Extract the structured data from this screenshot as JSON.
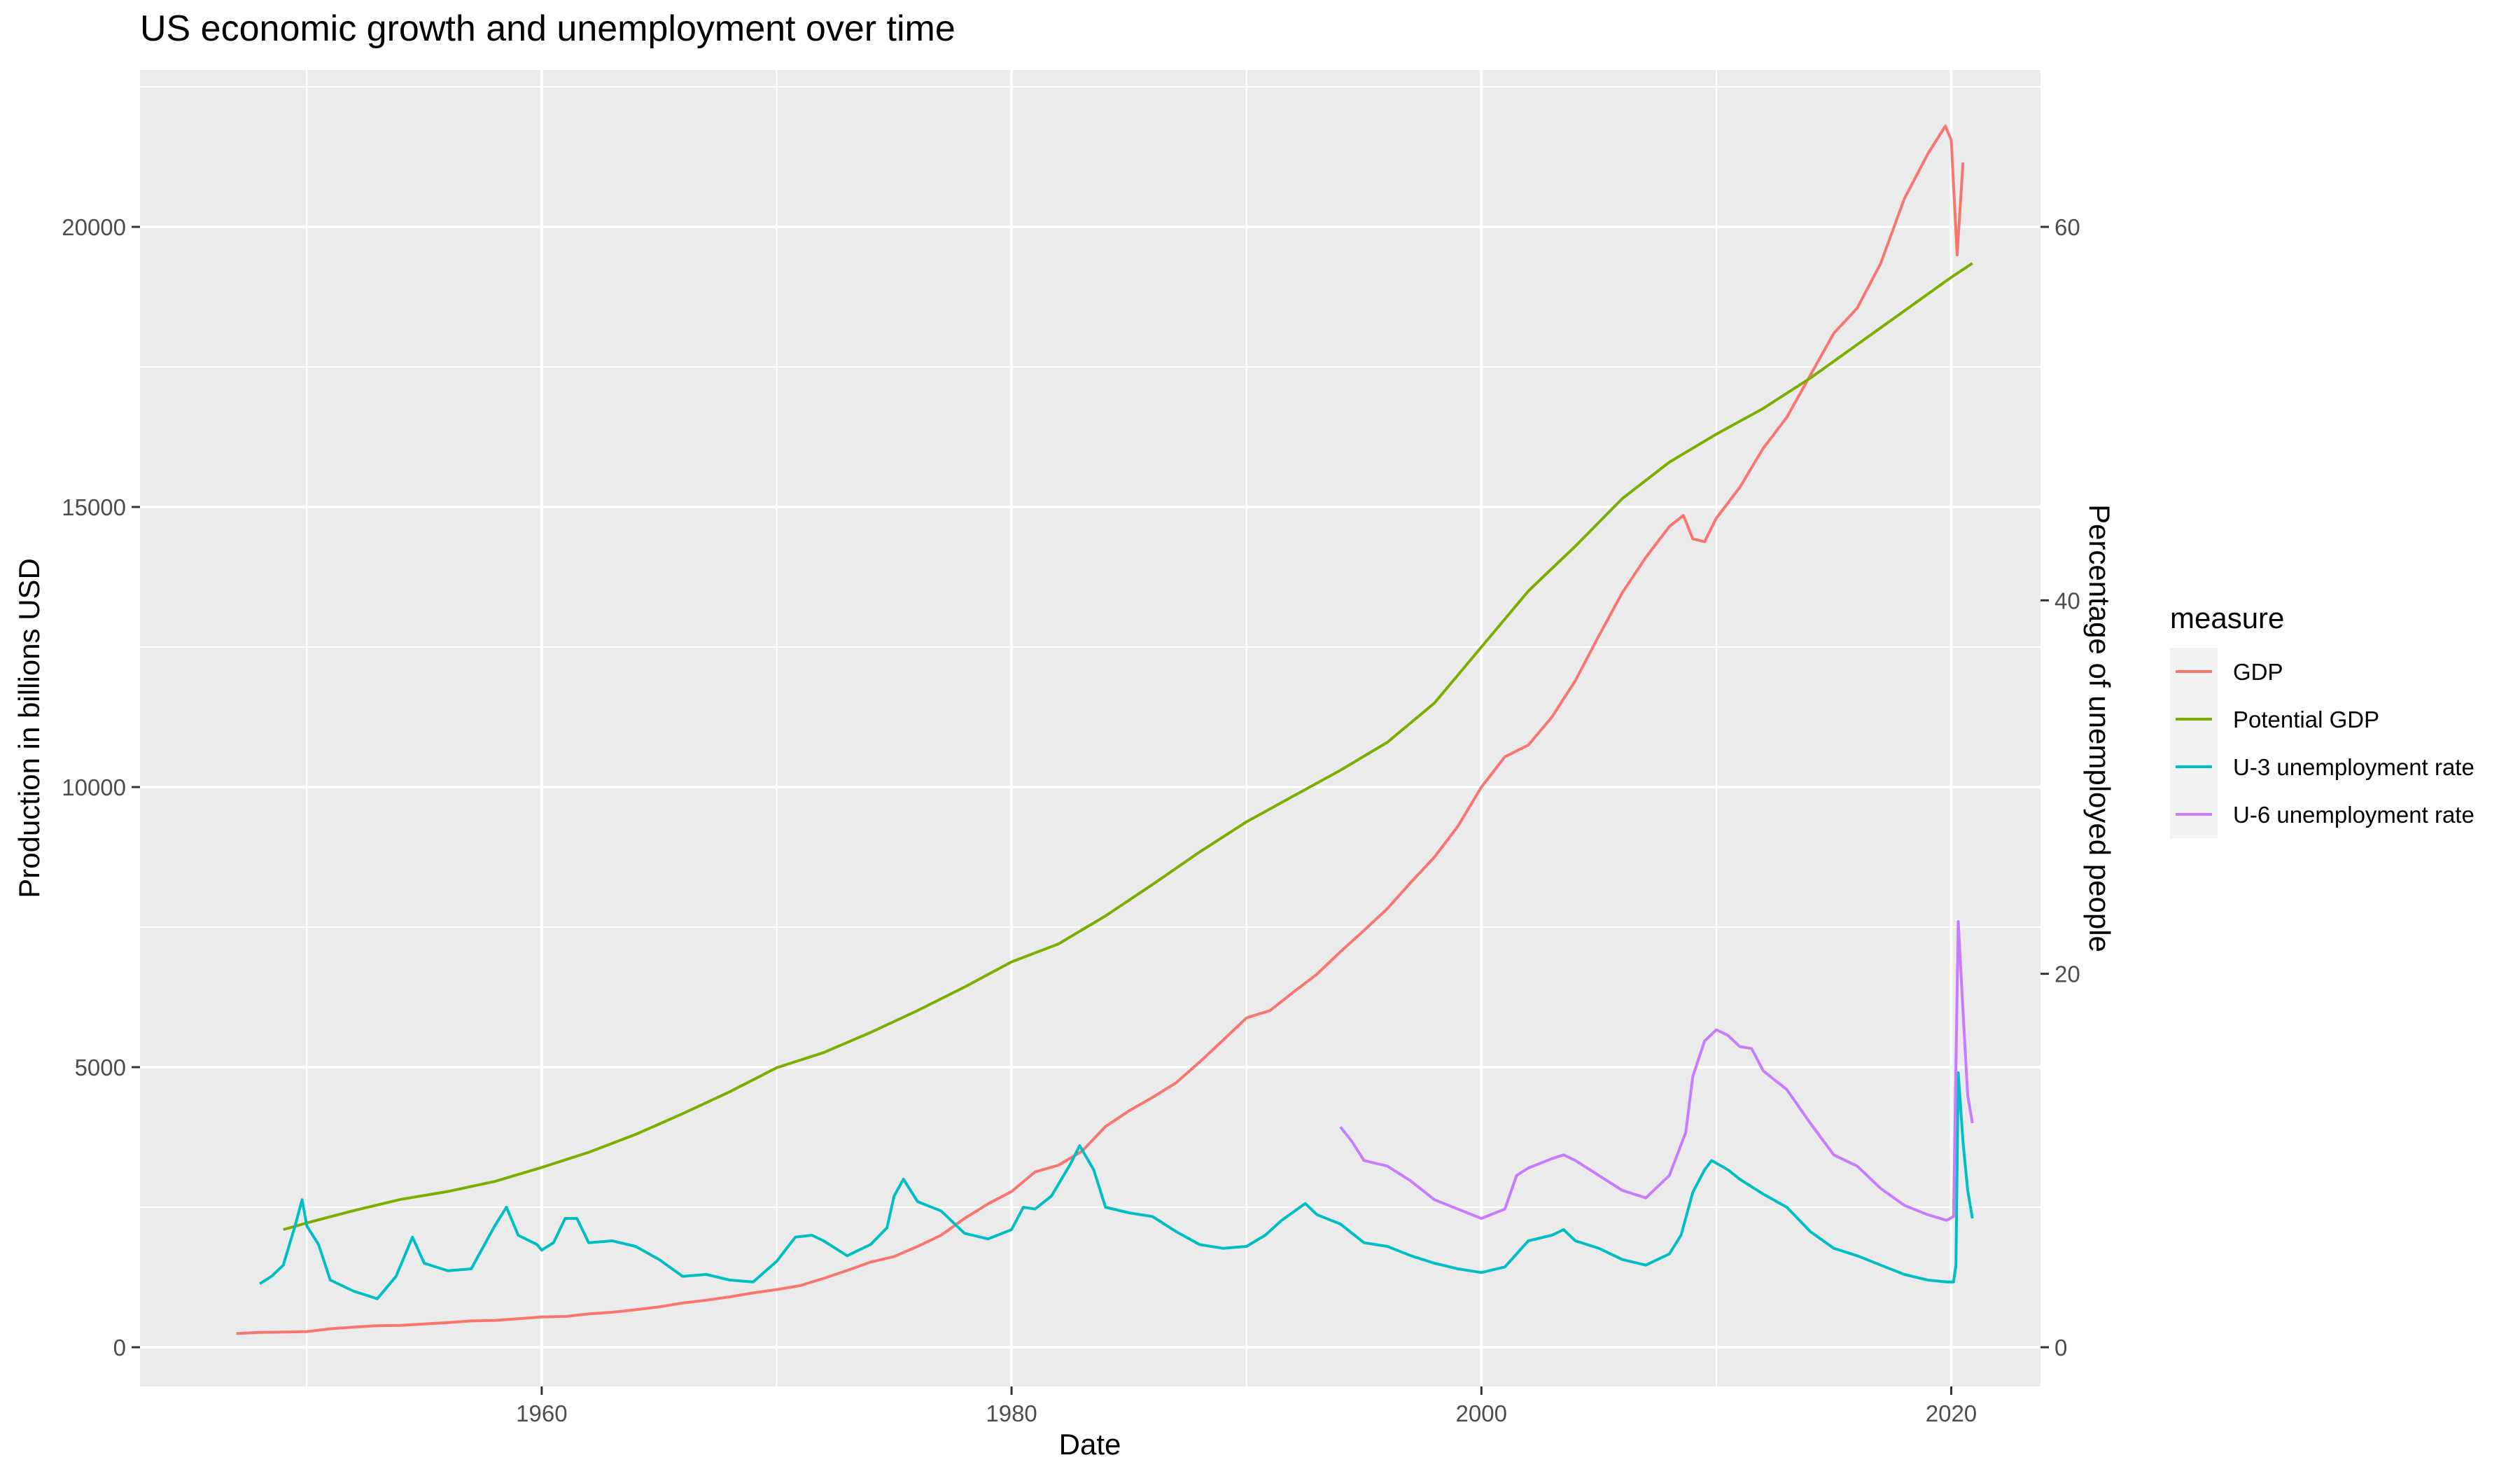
{
  "chart_data": {
    "type": "line",
    "title": "US economic growth and unemployment over time",
    "xlabel": "Date",
    "ylabel": "Production in billions USD",
    "y2label": "Percentage of unemployed people",
    "xlim": [
      1942.9,
      2023.8
    ],
    "ylim": [
      -700,
      22800
    ],
    "y2lim": [
      -2.1,
      68.4
    ],
    "x_ticks": [
      1960,
      1980,
      2000,
      2020
    ],
    "y_ticks": [
      0,
      5000,
      10000,
      15000,
      20000
    ],
    "y2_ticks": [
      0,
      20,
      40,
      60
    ],
    "grid": true,
    "legend": {
      "title": "measure",
      "position": "right",
      "entries": [
        "GDP",
        "Potential GDP",
        "U-3 unemployment rate",
        "U-6 unemployment rate"
      ]
    },
    "colors": {
      "GDP": "#F8766D",
      "Potential GDP": "#7CAE00",
      "U-3 unemployment rate": "#00BFC4",
      "U-6 unemployment rate": "#C77CFF",
      "panel": "#EBEBEB",
      "grid": "#FFFFFF"
    },
    "series": [
      {
        "name": "GDP",
        "axis": "left",
        "points": [
          [
            1947.0,
            245
          ],
          [
            1948.0,
            265
          ],
          [
            1949.0,
            270
          ],
          [
            1950.0,
            280
          ],
          [
            1951.0,
            330
          ],
          [
            1952.0,
            360
          ],
          [
            1953.0,
            385
          ],
          [
            1954.0,
            390
          ],
          [
            1955.0,
            415
          ],
          [
            1956.0,
            440
          ],
          [
            1957.0,
            470
          ],
          [
            1958.0,
            480
          ],
          [
            1959.0,
            510
          ],
          [
            1960.0,
            540
          ],
          [
            1961.0,
            550
          ],
          [
            1962.0,
            595
          ],
          [
            1963.0,
            625
          ],
          [
            1964.0,
            670
          ],
          [
            1965.0,
            720
          ],
          [
            1966.0,
            790
          ],
          [
            1967.0,
            840
          ],
          [
            1968.0,
            900
          ],
          [
            1969.0,
            970
          ],
          [
            1970.0,
            1030
          ],
          [
            1971.0,
            1100
          ],
          [
            1972.0,
            1230
          ],
          [
            1973.0,
            1370
          ],
          [
            1974.0,
            1520
          ],
          [
            1975.0,
            1620
          ],
          [
            1976.0,
            1800
          ],
          [
            1977.0,
            2000
          ],
          [
            1978.0,
            2300
          ],
          [
            1979.0,
            2560
          ],
          [
            1980.0,
            2780
          ],
          [
            1981.0,
            3130
          ],
          [
            1982.0,
            3250
          ],
          [
            1983.0,
            3500
          ],
          [
            1984.0,
            3940
          ],
          [
            1985.0,
            4220
          ],
          [
            1986.0,
            4460
          ],
          [
            1987.0,
            4720
          ],
          [
            1988.0,
            5090
          ],
          [
            1989.0,
            5480
          ],
          [
            1990.0,
            5880
          ],
          [
            1991.0,
            6010
          ],
          [
            1992.0,
            6340
          ],
          [
            1993.0,
            6660
          ],
          [
            1994.0,
            7060
          ],
          [
            1995.0,
            7440
          ],
          [
            1996.0,
            7830
          ],
          [
            1997.0,
            8300
          ],
          [
            1998.0,
            8750
          ],
          [
            1999.0,
            9300
          ],
          [
            2000.0,
            10000
          ],
          [
            2001.0,
            10540
          ],
          [
            2002.0,
            10750
          ],
          [
            2003.0,
            11250
          ],
          [
            2004.0,
            11900
          ],
          [
            2005.0,
            12700
          ],
          [
            2006.0,
            13470
          ],
          [
            2007.0,
            14100
          ],
          [
            2008.0,
            14650
          ],
          [
            2008.6,
            14850
          ],
          [
            2009.0,
            14430
          ],
          [
            2009.5,
            14380
          ],
          [
            2010.0,
            14800
          ],
          [
            2011.0,
            15350
          ],
          [
            2012.0,
            16050
          ],
          [
            2013.0,
            16600
          ],
          [
            2014.0,
            17350
          ],
          [
            2015.0,
            18100
          ],
          [
            2016.0,
            18550
          ],
          [
            2017.0,
            19350
          ],
          [
            2018.0,
            20500
          ],
          [
            2019.0,
            21300
          ],
          [
            2019.75,
            21800
          ],
          [
            2020.0,
            21550
          ],
          [
            2020.25,
            19500
          ],
          [
            2020.5,
            21150
          ]
        ]
      },
      {
        "name": "Potential GDP",
        "axis": "left",
        "points": [
          [
            1949.0,
            2100
          ],
          [
            1950.0,
            2220
          ],
          [
            1952.0,
            2440
          ],
          [
            1954.0,
            2640
          ],
          [
            1956.0,
            2780
          ],
          [
            1958.0,
            2960
          ],
          [
            1960.0,
            3210
          ],
          [
            1962.0,
            3480
          ],
          [
            1964.0,
            3800
          ],
          [
            1966.0,
            4170
          ],
          [
            1968.0,
            4560
          ],
          [
            1970.0,
            4990
          ],
          [
            1972.0,
            5260
          ],
          [
            1974.0,
            5620
          ],
          [
            1976.0,
            6010
          ],
          [
            1978.0,
            6430
          ],
          [
            1980.0,
            6880
          ],
          [
            1982.0,
            7200
          ],
          [
            1984.0,
            7700
          ],
          [
            1986.0,
            8260
          ],
          [
            1988.0,
            8840
          ],
          [
            1990.0,
            9380
          ],
          [
            1992.0,
            9840
          ],
          [
            1994.0,
            10300
          ],
          [
            1996.0,
            10800
          ],
          [
            1998.0,
            11500
          ],
          [
            2000.0,
            12500
          ],
          [
            2002.0,
            13500
          ],
          [
            2004.0,
            14300
          ],
          [
            2006.0,
            15150
          ],
          [
            2008.0,
            15800
          ],
          [
            2010.0,
            16300
          ],
          [
            2012.0,
            16760
          ],
          [
            2014.0,
            17300
          ],
          [
            2016.0,
            17900
          ],
          [
            2018.0,
            18500
          ],
          [
            2020.0,
            19100
          ],
          [
            2020.9,
            19350
          ]
        ]
      },
      {
        "name": "U-3 unemployment rate",
        "axis": "right",
        "points": [
          [
            1948.0,
            3.4
          ],
          [
            1948.5,
            3.8
          ],
          [
            1949.0,
            4.4
          ],
          [
            1949.5,
            6.5
          ],
          [
            1949.8,
            7.9
          ],
          [
            1950.0,
            6.5
          ],
          [
            1950.5,
            5.5
          ],
          [
            1951.0,
            3.6
          ],
          [
            1952.0,
            3.0
          ],
          [
            1953.0,
            2.6
          ],
          [
            1953.8,
            3.8
          ],
          [
            1954.5,
            5.9
          ],
          [
            1955.0,
            4.5
          ],
          [
            1956.0,
            4.1
          ],
          [
            1957.0,
            4.2
          ],
          [
            1958.0,
            6.5
          ],
          [
            1958.5,
            7.5
          ],
          [
            1959.0,
            6.0
          ],
          [
            1959.8,
            5.5
          ],
          [
            1960.0,
            5.2
          ],
          [
            1960.5,
            5.6
          ],
          [
            1961.0,
            6.9
          ],
          [
            1961.5,
            6.9
          ],
          [
            1962.0,
            5.6
          ],
          [
            1963.0,
            5.7
          ],
          [
            1964.0,
            5.4
          ],
          [
            1965.0,
            4.7
          ],
          [
            1966.0,
            3.8
          ],
          [
            1967.0,
            3.9
          ],
          [
            1968.0,
            3.6
          ],
          [
            1969.0,
            3.5
          ],
          [
            1970.0,
            4.6
          ],
          [
            1970.8,
            5.9
          ],
          [
            1971.5,
            6.0
          ],
          [
            1972.0,
            5.7
          ],
          [
            1973.0,
            4.9
          ],
          [
            1974.0,
            5.5
          ],
          [
            1974.7,
            6.4
          ],
          [
            1975.0,
            8.1
          ],
          [
            1975.4,
            9.0
          ],
          [
            1976.0,
            7.8
          ],
          [
            1977.0,
            7.3
          ],
          [
            1978.0,
            6.1
          ],
          [
            1979.0,
            5.8
          ],
          [
            1980.0,
            6.3
          ],
          [
            1980.5,
            7.5
          ],
          [
            1981.0,
            7.4
          ],
          [
            1981.7,
            8.1
          ],
          [
            1982.5,
            9.8
          ],
          [
            1982.9,
            10.8
          ],
          [
            1983.5,
            9.5
          ],
          [
            1984.0,
            7.5
          ],
          [
            1985.0,
            7.2
          ],
          [
            1986.0,
            7.0
          ],
          [
            1987.0,
            6.2
          ],
          [
            1988.0,
            5.5
          ],
          [
            1989.0,
            5.3
          ],
          [
            1990.0,
            5.4
          ],
          [
            1990.8,
            6.0
          ],
          [
            1991.5,
            6.8
          ],
          [
            1992.5,
            7.7
          ],
          [
            1993.0,
            7.1
          ],
          [
            1994.0,
            6.6
          ],
          [
            1995.0,
            5.6
          ],
          [
            1996.0,
            5.4
          ],
          [
            1997.0,
            4.9
          ],
          [
            1998.0,
            4.5
          ],
          [
            1999.0,
            4.2
          ],
          [
            2000.0,
            4.0
          ],
          [
            2001.0,
            4.3
          ],
          [
            2002.0,
            5.7
          ],
          [
            2003.0,
            6.0
          ],
          [
            2003.5,
            6.3
          ],
          [
            2004.0,
            5.7
          ],
          [
            2005.0,
            5.3
          ],
          [
            2006.0,
            4.7
          ],
          [
            2007.0,
            4.4
          ],
          [
            2008.0,
            5.0
          ],
          [
            2008.5,
            6.0
          ],
          [
            2009.0,
            8.3
          ],
          [
            2009.5,
            9.5
          ],
          [
            2009.8,
            10.0
          ],
          [
            2010.5,
            9.5
          ],
          [
            2011.0,
            9.0
          ],
          [
            2012.0,
            8.2
          ],
          [
            2013.0,
            7.5
          ],
          [
            2014.0,
            6.2
          ],
          [
            2015.0,
            5.3
          ],
          [
            2016.0,
            4.9
          ],
          [
            2017.0,
            4.4
          ],
          [
            2018.0,
            3.9
          ],
          [
            2019.0,
            3.6
          ],
          [
            2019.8,
            3.5
          ],
          [
            2020.1,
            3.5
          ],
          [
            2020.2,
            4.4
          ],
          [
            2020.3,
            14.7
          ],
          [
            2020.5,
            11.0
          ],
          [
            2020.7,
            8.4
          ],
          [
            2020.9,
            6.9
          ]
        ]
      },
      {
        "name": "U-6 unemployment rate",
        "axis": "right",
        "points": [
          [
            1994.0,
            11.8
          ],
          [
            1994.5,
            11.0
          ],
          [
            1995.0,
            10.0
          ],
          [
            1996.0,
            9.7
          ],
          [
            1997.0,
            8.9
          ],
          [
            1998.0,
            7.9
          ],
          [
            1999.0,
            7.4
          ],
          [
            2000.0,
            6.9
          ],
          [
            2001.0,
            7.4
          ],
          [
            2001.5,
            9.2
          ],
          [
            2002.0,
            9.6
          ],
          [
            2003.0,
            10.1
          ],
          [
            2003.5,
            10.3
          ],
          [
            2004.0,
            10.0
          ],
          [
            2005.0,
            9.2
          ],
          [
            2006.0,
            8.4
          ],
          [
            2007.0,
            8.0
          ],
          [
            2008.0,
            9.2
          ],
          [
            2008.7,
            11.5
          ],
          [
            2009.0,
            14.5
          ],
          [
            2009.5,
            16.4
          ],
          [
            2010.0,
            17.0
          ],
          [
            2010.5,
            16.7
          ],
          [
            2011.0,
            16.1
          ],
          [
            2011.5,
            16.0
          ],
          [
            2012.0,
            14.8
          ],
          [
            2013.0,
            13.8
          ],
          [
            2014.0,
            12.0
          ],
          [
            2015.0,
            10.3
          ],
          [
            2016.0,
            9.7
          ],
          [
            2017.0,
            8.5
          ],
          [
            2018.0,
            7.6
          ],
          [
            2019.0,
            7.1
          ],
          [
            2019.8,
            6.8
          ],
          [
            2020.1,
            7.0
          ],
          [
            2020.3,
            22.8
          ],
          [
            2020.5,
            18.0
          ],
          [
            2020.7,
            13.5
          ],
          [
            2020.9,
            12.0
          ]
        ]
      }
    ]
  }
}
